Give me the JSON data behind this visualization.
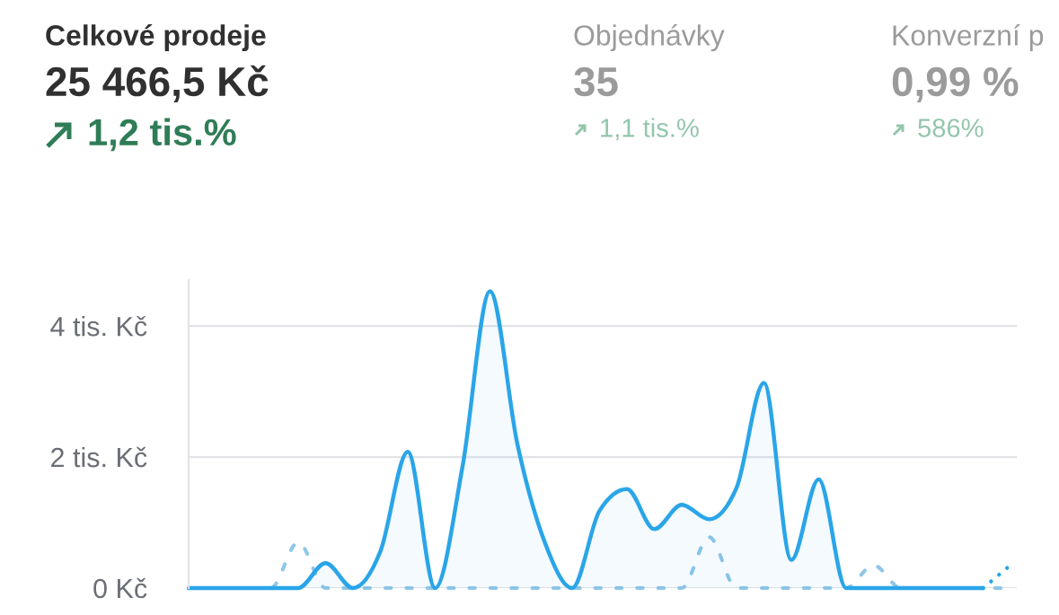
{
  "chart_data": [
    {
      "type": "other",
      "title": "Celkové prodeje",
      "subtitle": "25 466,5 Kč",
      "annotations": [
        "1,2 tis.%"
      ]
    },
    {
      "type": "other",
      "title": "Objednávky",
      "subtitle": "35",
      "annotations": [
        "1,1 tis.%"
      ]
    },
    {
      "type": "other",
      "title": "Konverzní p",
      "subtitle": "0,99 %",
      "annotations": [
        "586%"
      ]
    },
    {
      "type": "line",
      "categories": [
        null,
        null,
        null,
        null,
        null,
        null,
        null,
        null,
        null,
        null,
        null,
        null,
        null,
        null,
        null,
        null,
        null,
        null,
        null,
        null,
        null,
        null,
        null,
        null,
        null,
        null,
        null,
        null,
        null,
        null,
        null
      ],
      "series": [
        {
          "type": "line",
          "color": "#8ec6e8",
          "line_style": "dashed",
          "values": [
            0,
            0,
            0,
            0,
            0.7,
            0,
            0,
            0,
            0,
            0,
            0,
            0,
            0,
            0,
            0,
            0,
            0,
            0,
            0,
            0.78,
            0,
            0,
            0,
            0,
            0,
            0.35,
            0,
            0,
            0,
            0,
            0
          ]
        },
        {
          "type": "area",
          "color": "#2aa5e8",
          "line_style": "solid",
          "values": [
            0,
            0,
            0,
            0,
            0,
            0.38,
            0,
            0.56,
            2.08,
            0,
            1.86,
            4.53,
            2.2,
            0.7,
            0,
            1.18,
            1.51,
            0.9,
            1.27,
            1.05,
            1.53,
            3.13,
            0.43,
            1.66,
            0,
            0,
            0,
            0,
            0,
            0,
            null
          ]
        },
        {
          "type": "line",
          "color": "#2aa5e8",
          "line_style": "dotted",
          "values": [
            null,
            null,
            null,
            null,
            null,
            null,
            null,
            null,
            null,
            null,
            null,
            null,
            null,
            null,
            null,
            null,
            null,
            null,
            null,
            null,
            null,
            null,
            null,
            null,
            null,
            null,
            null,
            null,
            null,
            0,
            0.35
          ]
        }
      ],
      "ylim": [
        0,
        4.7
      ],
      "yticks": [
        {
          "value": 0,
          "label": "0 Kč"
        },
        {
          "value": 2,
          "label": "2 tis. Kč"
        },
        {
          "value": 4,
          "label": "4 tis. Kč"
        }
      ],
      "grid": "y",
      "tick_labels": "y"
    }
  ]
}
